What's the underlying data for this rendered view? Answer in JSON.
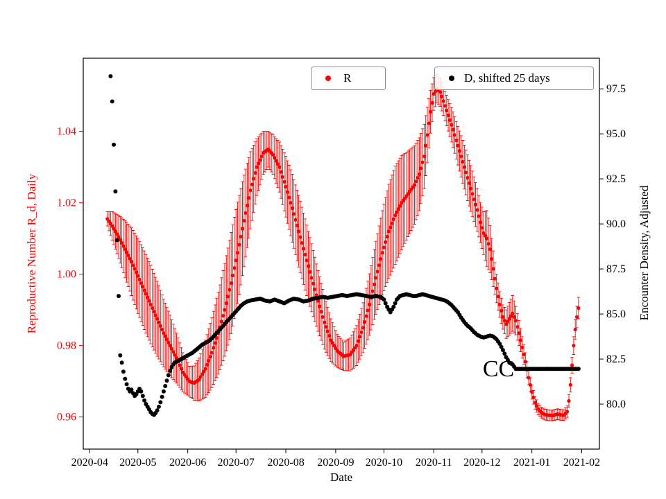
{
  "chart_data": {
    "type": "scatter",
    "title": "",
    "xlabel": "Date",
    "ylabel_left": "Reproductive Number R_d, Daily",
    "ylabel_right": "Encounter Density, Adjusted",
    "left_color": "#ff0000",
    "right_color": "#000000",
    "grid": false,
    "x_unit": "days since 2020-04-01",
    "xlim_days": [
      -4,
      317
    ],
    "left_ylim": [
      0.951,
      1.0605
    ],
    "right_ylim": [
      77.5,
      99.2
    ],
    "x_ticks": [
      {
        "day": 0,
        "label": "2020-04"
      },
      {
        "day": 30,
        "label": "2020-05"
      },
      {
        "day": 61,
        "label": "2020-06"
      },
      {
        "day": 91,
        "label": "2020-07"
      },
      {
        "day": 122,
        "label": "2020-08"
      },
      {
        "day": 153,
        "label": "2020-09"
      },
      {
        "day": 183,
        "label": "2020-10"
      },
      {
        "day": 214,
        "label": "2020-11"
      },
      {
        "day": 244,
        "label": "2020-12"
      },
      {
        "day": 275,
        "label": "2021-01"
      },
      {
        "day": 306,
        "label": "2021-02"
      }
    ],
    "left_yticks": [
      {
        "value": 0.96,
        "label": "0.96"
      },
      {
        "value": 0.98,
        "label": "0.98"
      },
      {
        "value": 1.0,
        "label": "1.00"
      },
      {
        "value": 1.02,
        "label": "1.02"
      },
      {
        "value": 1.04,
        "label": "1.04"
      }
    ],
    "right_yticks": [
      {
        "value": 80.0,
        "label": "80.0"
      },
      {
        "value": 82.5,
        "label": "82.5"
      },
      {
        "value": 85.0,
        "label": "85.0"
      },
      {
        "value": 87.5,
        "label": "87.5"
      },
      {
        "value": 90.0,
        "label": "90.0"
      },
      {
        "value": 92.5,
        "label": "92.5"
      },
      {
        "value": 95.0,
        "label": "95.0"
      },
      {
        "value": 97.5,
        "label": "97.5"
      }
    ],
    "legend": [
      {
        "label": "R",
        "color": "#ff0000"
      },
      {
        "label": "D, shifted 25 days",
        "color": "#000000"
      }
    ],
    "annotation": {
      "text": "CC",
      "day": 264,
      "value": 82.0,
      "axis": "right"
    },
    "series": [
      {
        "name": "R",
        "axis": "left",
        "color": "#ff0000",
        "marker": "circle-with-errorbar",
        "keypoints": [
          [
            11,
            1.0155,
            0.002
          ],
          [
            14,
            1.0135,
            0.004
          ],
          [
            18,
            1.0105,
            0.006
          ],
          [
            22,
            1.007,
            0.008
          ],
          [
            26,
            1.0035,
            0.0095
          ],
          [
            30,
            0.9995,
            0.0105
          ],
          [
            34,
            0.9955,
            0.011
          ],
          [
            38,
            0.9915,
            0.011
          ],
          [
            42,
            0.9875,
            0.0105
          ],
          [
            46,
            0.9835,
            0.0095
          ],
          [
            50,
            0.98,
            0.0085
          ],
          [
            54,
            0.9765,
            0.007
          ],
          [
            58,
            0.9725,
            0.0055
          ],
          [
            62,
            0.97,
            0.0042
          ],
          [
            65,
            0.9695,
            0.0048
          ],
          [
            68,
            0.9705,
            0.006
          ],
          [
            72,
            0.9735,
            0.008
          ],
          [
            76,
            0.978,
            0.0098
          ],
          [
            80,
            0.9835,
            0.0115
          ],
          [
            84,
            0.99,
            0.013
          ],
          [
            88,
            0.9975,
            0.0142
          ],
          [
            92,
            1.006,
            0.0142
          ],
          [
            96,
            1.015,
            0.0128
          ],
          [
            100,
            1.0235,
            0.0108
          ],
          [
            104,
            1.03,
            0.008
          ],
          [
            108,
            1.034,
            0.006
          ],
          [
            111,
            1.035,
            0.005
          ],
          [
            114,
            1.0335,
            0.0055
          ],
          [
            118,
            1.03,
            0.007
          ],
          [
            122,
            1.0245,
            0.0085
          ],
          [
            126,
            1.0185,
            0.0095
          ],
          [
            130,
            1.012,
            0.01
          ],
          [
            134,
            1.0055,
            0.01
          ],
          [
            138,
            0.999,
            0.0095
          ],
          [
            142,
            0.9925,
            0.0085
          ],
          [
            146,
            0.9865,
            0.0075
          ],
          [
            150,
            0.9815,
            0.006
          ],
          [
            154,
            0.9785,
            0.0046
          ],
          [
            158,
            0.977,
            0.004
          ],
          [
            162,
            0.9775,
            0.0046
          ],
          [
            166,
            0.98,
            0.0056
          ],
          [
            170,
            0.985,
            0.007
          ],
          [
            174,
            0.9915,
            0.0086
          ],
          [
            178,
            0.999,
            0.0102
          ],
          [
            182,
            1.006,
            0.0118
          ],
          [
            186,
            1.012,
            0.0132
          ],
          [
            190,
            1.0165,
            0.0138
          ],
          [
            194,
            1.02,
            0.0132
          ],
          [
            198,
            1.0225,
            0.012
          ],
          [
            202,
            1.025,
            0.011
          ],
          [
            205,
            1.028,
            0.0102
          ],
          [
            208,
            1.033,
            0.009
          ],
          [
            210,
            1.039,
            0.0078
          ],
          [
            212,
            1.0455,
            0.006
          ],
          [
            214,
            1.0505,
            0.0046
          ],
          [
            216,
            1.052,
            0.004
          ],
          [
            218,
            1.051,
            0.004
          ],
          [
            220,
            1.0485,
            0.004
          ],
          [
            223,
            1.0445,
            0.0044
          ],
          [
            226,
            1.0405,
            0.005
          ],
          [
            229,
            1.036,
            0.0054
          ],
          [
            232,
            1.0315,
            0.006
          ],
          [
            235,
            1.027,
            0.0064
          ],
          [
            238,
            1.0225,
            0.0064
          ],
          [
            241,
            1.018,
            0.006
          ],
          [
            243,
            1.0145,
            0.0056
          ],
          [
            245,
            1.0115,
            0.006
          ],
          [
            247,
            1.01,
            0.0078
          ],
          [
            249,
            1.007,
            0.0066
          ],
          [
            251,
            1.0015,
            0.005
          ],
          [
            253,
            0.996,
            0.004
          ],
          [
            255,
            0.9915,
            0.0036
          ],
          [
            257,
            0.988,
            0.0034
          ],
          [
            259,
            0.986,
            0.004
          ],
          [
            261,
            0.9875,
            0.0046
          ],
          [
            263,
            0.989,
            0.005
          ],
          [
            265,
            0.987,
            0.004
          ],
          [
            267,
            0.9835,
            0.0035
          ],
          [
            269,
            0.9795,
            0.003
          ],
          [
            271,
            0.9755,
            0.0025
          ],
          [
            273,
            0.971,
            0.002
          ],
          [
            275,
            0.967,
            0.002
          ],
          [
            277,
            0.964,
            0.0018
          ],
          [
            279,
            0.9622,
            0.0016
          ],
          [
            281,
            0.9612,
            0.0015
          ],
          [
            283,
            0.9607,
            0.0015
          ],
          [
            285,
            0.9605,
            0.0015
          ],
          [
            288,
            0.9604,
            0.0015
          ],
          [
            291,
            0.9608,
            0.0015
          ],
          [
            293,
            0.9606,
            0.0015
          ],
          [
            295,
            0.9605,
            0.0015
          ],
          [
            297,
            0.9615,
            0.0016
          ],
          [
            298,
            0.9645,
            0.0018
          ],
          [
            299,
            0.969,
            0.002
          ],
          [
            300,
            0.9745,
            0.0022
          ],
          [
            301,
            0.98,
            0.0025
          ],
          [
            302,
            0.9845,
            0.0028
          ],
          [
            303,
            0.988,
            0.003
          ],
          [
            304,
            0.9905,
            0.003
          ]
        ]
      },
      {
        "name": "D, shifted 25 days",
        "axis": "right",
        "color": "#000000",
        "marker": "circle",
        "keypoints": [
          [
            13,
            98.2
          ],
          [
            14,
            96.8
          ],
          [
            15,
            94.4
          ],
          [
            16,
            91.8
          ],
          [
            17,
            89.1
          ],
          [
            18,
            86.0
          ],
          [
            19,
            82.7
          ],
          [
            20,
            82.3
          ],
          [
            21,
            81.8
          ],
          [
            22,
            81.4
          ],
          [
            23,
            81.1
          ],
          [
            24,
            80.85
          ],
          [
            25,
            80.7
          ],
          [
            26,
            80.8
          ],
          [
            27,
            80.6
          ],
          [
            28,
            80.45
          ],
          [
            29,
            80.55
          ],
          [
            30,
            80.7
          ],
          [
            31,
            80.85
          ],
          [
            32,
            80.7
          ],
          [
            33,
            80.45
          ],
          [
            34,
            80.2
          ],
          [
            35,
            80.0
          ],
          [
            36,
            79.85
          ],
          [
            37,
            79.7
          ],
          [
            38,
            79.55
          ],
          [
            39,
            79.45
          ],
          [
            40,
            79.4
          ],
          [
            41,
            79.5
          ],
          [
            42,
            79.65
          ],
          [
            43,
            79.85
          ],
          [
            44,
            80.1
          ],
          [
            45,
            80.4
          ],
          [
            46,
            80.7
          ],
          [
            47,
            81.0
          ],
          [
            48,
            81.3
          ],
          [
            49,
            81.6
          ],
          [
            50,
            81.85
          ],
          [
            51,
            82.05
          ],
          [
            52,
            82.2
          ],
          [
            53,
            82.3
          ],
          [
            54,
            82.35
          ],
          [
            56,
            82.45
          ],
          [
            58,
            82.55
          ],
          [
            60,
            82.65
          ],
          [
            62,
            82.75
          ],
          [
            64,
            82.85
          ],
          [
            66,
            83.0
          ],
          [
            68,
            83.15
          ],
          [
            70,
            83.3
          ],
          [
            72,
            83.4
          ],
          [
            74,
            83.5
          ],
          [
            76,
            83.65
          ],
          [
            78,
            83.85
          ],
          [
            80,
            84.05
          ],
          [
            82,
            84.25
          ],
          [
            84,
            84.45
          ],
          [
            86,
            84.65
          ],
          [
            88,
            84.85
          ],
          [
            90,
            85.05
          ],
          [
            92,
            85.25
          ],
          [
            94,
            85.45
          ],
          [
            96,
            85.6
          ],
          [
            98,
            85.7
          ],
          [
            100,
            85.75
          ],
          [
            103,
            85.8
          ],
          [
            106,
            85.85
          ],
          [
            109,
            85.75
          ],
          [
            112,
            85.7
          ],
          [
            115,
            85.8
          ],
          [
            118,
            85.7
          ],
          [
            121,
            85.6
          ],
          [
            124,
            85.75
          ],
          [
            127,
            85.85
          ],
          [
            130,
            85.8
          ],
          [
            133,
            85.7
          ],
          [
            136,
            85.75
          ],
          [
            139,
            85.85
          ],
          [
            142,
            85.9
          ],
          [
            145,
            85.95
          ],
          [
            148,
            85.9
          ],
          [
            151,
            85.95
          ],
          [
            154,
            86.0
          ],
          [
            157,
            86.05
          ],
          [
            160,
            86.0
          ],
          [
            163,
            86.05
          ],
          [
            166,
            86.1
          ],
          [
            169,
            86.05
          ],
          [
            172,
            86.0
          ],
          [
            175,
            85.95
          ],
          [
            178,
            86.0
          ],
          [
            181,
            85.95
          ],
          [
            183,
            85.8
          ],
          [
            185,
            85.4
          ],
          [
            187,
            85.1
          ],
          [
            189,
            85.4
          ],
          [
            191,
            85.8
          ],
          [
            193,
            86.0
          ],
          [
            195,
            86.05
          ],
          [
            197,
            86.1
          ],
          [
            199,
            86.05
          ],
          [
            201,
            86.0
          ],
          [
            203,
            86.0
          ],
          [
            205,
            86.05
          ],
          [
            207,
            86.1
          ],
          [
            209,
            86.05
          ],
          [
            211,
            86.0
          ],
          [
            213,
            85.95
          ],
          [
            215,
            85.9
          ],
          [
            217,
            85.85
          ],
          [
            219,
            85.8
          ],
          [
            221,
            85.75
          ],
          [
            223,
            85.65
          ],
          [
            225,
            85.5
          ],
          [
            227,
            85.3
          ],
          [
            229,
            85.1
          ],
          [
            231,
            84.8
          ],
          [
            233,
            84.55
          ],
          [
            235,
            84.35
          ],
          [
            237,
            84.2
          ],
          [
            239,
            84.0
          ],
          [
            241,
            83.85
          ],
          [
            243,
            83.75
          ],
          [
            245,
            83.7
          ],
          [
            247,
            83.75
          ],
          [
            249,
            83.8
          ],
          [
            251,
            83.75
          ],
          [
            253,
            83.6
          ],
          [
            255,
            83.35
          ],
          [
            257,
            83.0
          ],
          [
            259,
            82.6
          ],
          [
            261,
            82.3
          ],
          [
            263,
            82.2
          ],
          [
            265,
            81.95
          ],
          [
            304,
            81.95
          ]
        ]
      }
    ]
  }
}
